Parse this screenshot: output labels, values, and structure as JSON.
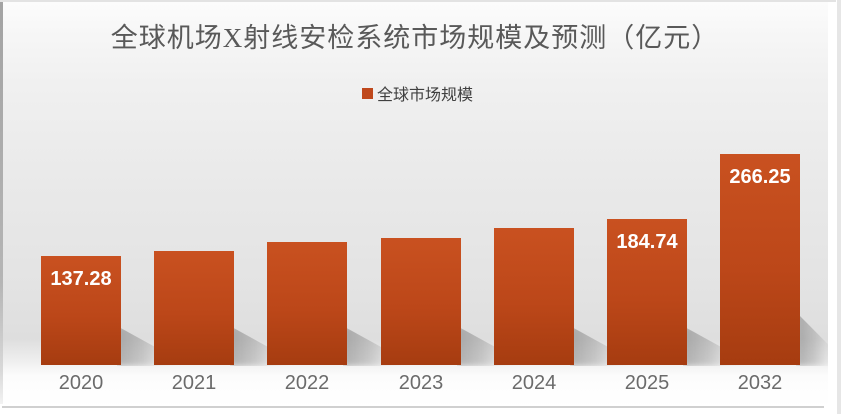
{
  "chart_data": {
    "type": "bar",
    "title": "全球机场X射线安检系统市场规模及预测（亿元）",
    "legend": [
      "全球市场规模"
    ],
    "categories": [
      "2020",
      "2021",
      "2022",
      "2023",
      "2024",
      "2025",
      "2032"
    ],
    "series": [
      {
        "name": "全球市场规模",
        "values": [
          137.28,
          144.3,
          155.6,
          160.7,
          173.3,
          184.74,
          266.25
        ]
      }
    ],
    "data_labels": [
      "137.28",
      "",
      "",
      "",
      "",
      "184.74",
      "266.25"
    ],
    "ylim": [
      0,
      280
    ],
    "grid": false,
    "legend_position": "top",
    "colors": {
      "bar_top": "#c95120",
      "bar_bottom": "#a63c10",
      "data_label": "#ffffff",
      "tick_label": "#6b6b6b",
      "title": "#595959",
      "legend_swatch": "#bf481c"
    }
  }
}
